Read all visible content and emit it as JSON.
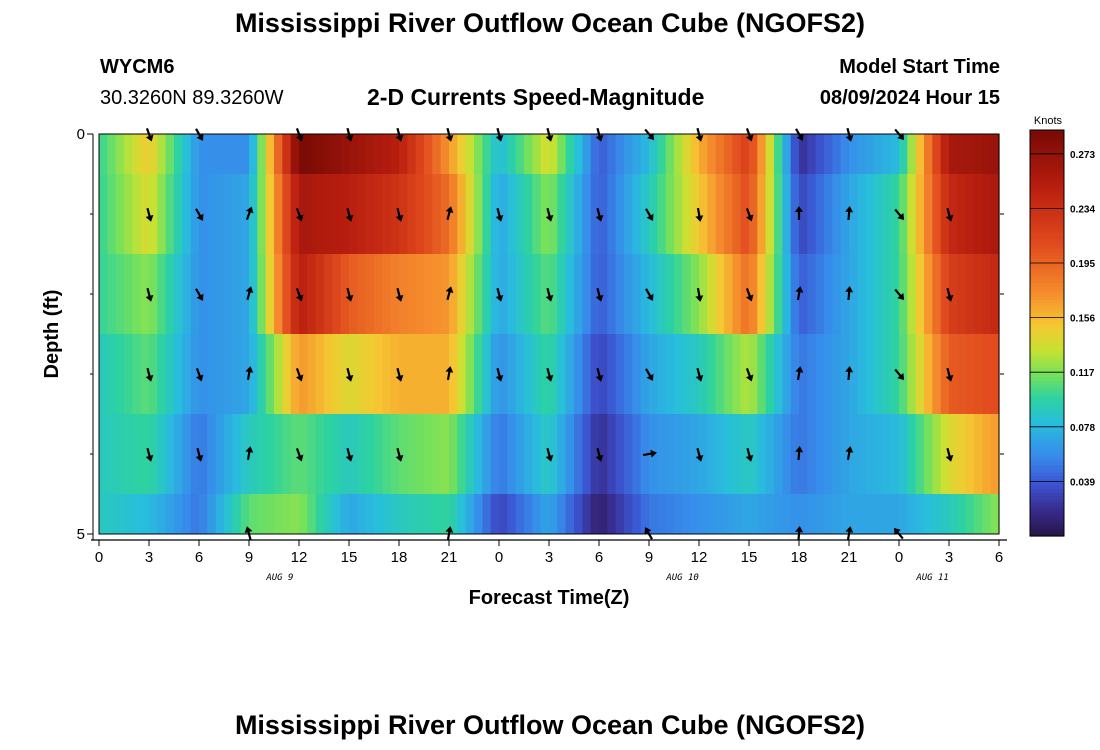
{
  "header": {
    "title_top": "Mississippi River Outflow Ocean Cube (NGOFS2)",
    "title_bottom": "Mississippi River Outflow Ocean Cube (NGOFS2)",
    "station_id": "WYCM6",
    "station_coords": "30.3260N  89.3260W",
    "model_start_label": "Model Start Time",
    "model_start_value": "08/09/2024 Hour 15",
    "colors": {
      "text": "#000000",
      "background": "#ffffff"
    }
  },
  "chart_data": {
    "type": "heatmap",
    "title": "2-D Currents Speed-Magnitude",
    "xlabel": "Forecast Time(Z)",
    "ylabel": "Depth (ft)",
    "x_ticks": [
      "0",
      "3",
      "6",
      "9",
      "12",
      "15",
      "18",
      "21",
      "0",
      "3",
      "6",
      "9",
      "12",
      "15",
      "18",
      "21",
      "0",
      "3",
      "6"
    ],
    "x_range_hours": [
      0,
      54
    ],
    "y_ticks": [
      "0",
      "5"
    ],
    "y_range": [
      0,
      5
    ],
    "date_labels": [
      {
        "label": "AUG 9",
        "hour": 11
      },
      {
        "label": "AUG 10",
        "hour": 35
      },
      {
        "label": "AUG 11",
        "hour": 50
      }
    ],
    "colorbar": {
      "title": "Knots",
      "ticks": [
        "0.273",
        "0.234",
        "0.195",
        "0.156",
        "0.117",
        "0.078",
        "0.039"
      ],
      "tick_values": [
        0.273,
        0.234,
        0.195,
        0.156,
        0.117,
        0.078,
        0.039
      ],
      "range": [
        0,
        0.29
      ]
    },
    "layers": [
      {
        "depth_range": [
          0,
          0.5
        ],
        "knots": {
          "x": [
            0,
            3,
            6,
            9,
            12,
            15,
            18,
            21,
            24,
            27,
            30,
            33,
            36,
            39,
            42,
            45,
            48,
            51,
            54
          ],
          "y": [
            0.1,
            0.15,
            0.06,
            0.06,
            0.29,
            0.27,
            0.25,
            0.17,
            0.08,
            0.14,
            0.04,
            0.08,
            0.16,
            0.22,
            0.02,
            0.06,
            0.08,
            0.26,
            0.27
          ]
        }
      },
      {
        "depth_range": [
          0.5,
          1.5
        ],
        "knots": {
          "x": [
            0,
            3,
            6,
            9,
            12,
            15,
            18,
            21,
            24,
            27,
            30,
            33,
            36,
            39,
            42,
            45,
            48,
            51,
            54
          ],
          "y": [
            0.1,
            0.14,
            0.06,
            0.07,
            0.26,
            0.25,
            0.23,
            0.19,
            0.07,
            0.12,
            0.04,
            0.09,
            0.15,
            0.21,
            0.03,
            0.07,
            0.1,
            0.24,
            0.26
          ]
        }
      },
      {
        "depth_range": [
          1.5,
          2.5
        ],
        "knots": {
          "x": [
            0,
            3,
            6,
            9,
            12,
            15,
            18,
            21,
            24,
            27,
            30,
            33,
            36,
            39,
            42,
            45,
            48,
            51,
            54
          ],
          "y": [
            0.1,
            0.12,
            0.06,
            0.07,
            0.25,
            0.2,
            0.18,
            0.17,
            0.07,
            0.11,
            0.04,
            0.08,
            0.12,
            0.19,
            0.04,
            0.07,
            0.1,
            0.22,
            0.24
          ]
        }
      },
      {
        "depth_range": [
          2.5,
          3.5
        ],
        "knots": {
          "x": [
            0,
            3,
            6,
            9,
            12,
            15,
            18,
            21,
            24,
            27,
            30,
            33,
            36,
            39,
            42,
            45,
            48,
            51,
            54
          ],
          "y": [
            0.09,
            0.11,
            0.06,
            0.07,
            0.17,
            0.14,
            0.16,
            0.16,
            0.06,
            0.1,
            0.03,
            0.07,
            0.09,
            0.13,
            0.05,
            0.07,
            0.1,
            0.2,
            0.21
          ]
        }
      },
      {
        "depth_range": [
          3.5,
          4.5
        ],
        "knots": {
          "x": [
            0,
            3,
            6,
            9,
            12,
            15,
            18,
            21,
            24,
            27,
            30,
            33,
            36,
            39,
            42,
            45,
            48,
            51,
            54
          ],
          "y": [
            0.09,
            0.1,
            0.05,
            0.09,
            0.11,
            0.09,
            0.11,
            0.12,
            0.05,
            0.09,
            0.02,
            0.06,
            0.07,
            0.09,
            0.05,
            0.07,
            0.08,
            0.14,
            0.17
          ]
        }
      },
      {
        "depth_range": [
          4.5,
          5
        ],
        "knots": {
          "x": [
            0,
            3,
            6,
            9,
            12,
            15,
            18,
            21,
            24,
            27,
            30,
            33,
            36,
            39,
            42,
            45,
            48,
            51,
            54
          ],
          "y": [
            0.09,
            0.08,
            0.05,
            0.11,
            0.12,
            0.07,
            0.09,
            0.1,
            0.03,
            0.07,
            0.01,
            0.05,
            0.06,
            0.07,
            0.06,
            0.07,
            0.07,
            0.09,
            0.12
          ]
        }
      }
    ],
    "vectors": {
      "hours": [
        3,
        6,
        9,
        12,
        15,
        18,
        21,
        24,
        27,
        30,
        33,
        36,
        39,
        42,
        45,
        48,
        51
      ],
      "depths": [
        0,
        1,
        2,
        3,
        4,
        5
      ],
      "direction_deg": [
        [
          160,
          150,
          null,
          160,
          165,
          165,
          165,
          165,
          165,
          165,
          140,
          165,
          160,
          150,
          165,
          140,
          null
        ],
        [
          165,
          150,
          20,
          160,
          165,
          165,
          15,
          165,
          165,
          165,
          150,
          170,
          160,
          0,
          5,
          140,
          165
        ],
        [
          165,
          150,
          15,
          160,
          165,
          165,
          15,
          165,
          165,
          165,
          150,
          170,
          160,
          10,
          5,
          140,
          165
        ],
        [
          165,
          160,
          10,
          160,
          165,
          165,
          10,
          165,
          165,
          165,
          150,
          165,
          160,
          10,
          5,
          140,
          165
        ],
        [
          165,
          165,
          10,
          160,
          165,
          165,
          null,
          null,
          165,
          165,
          80,
          165,
          165,
          5,
          10,
          null,
          165
        ],
        [
          null,
          null,
          345,
          null,
          null,
          null,
          10,
          null,
          null,
          null,
          330,
          null,
          null,
          5,
          10,
          320,
          null
        ]
      ]
    }
  }
}
